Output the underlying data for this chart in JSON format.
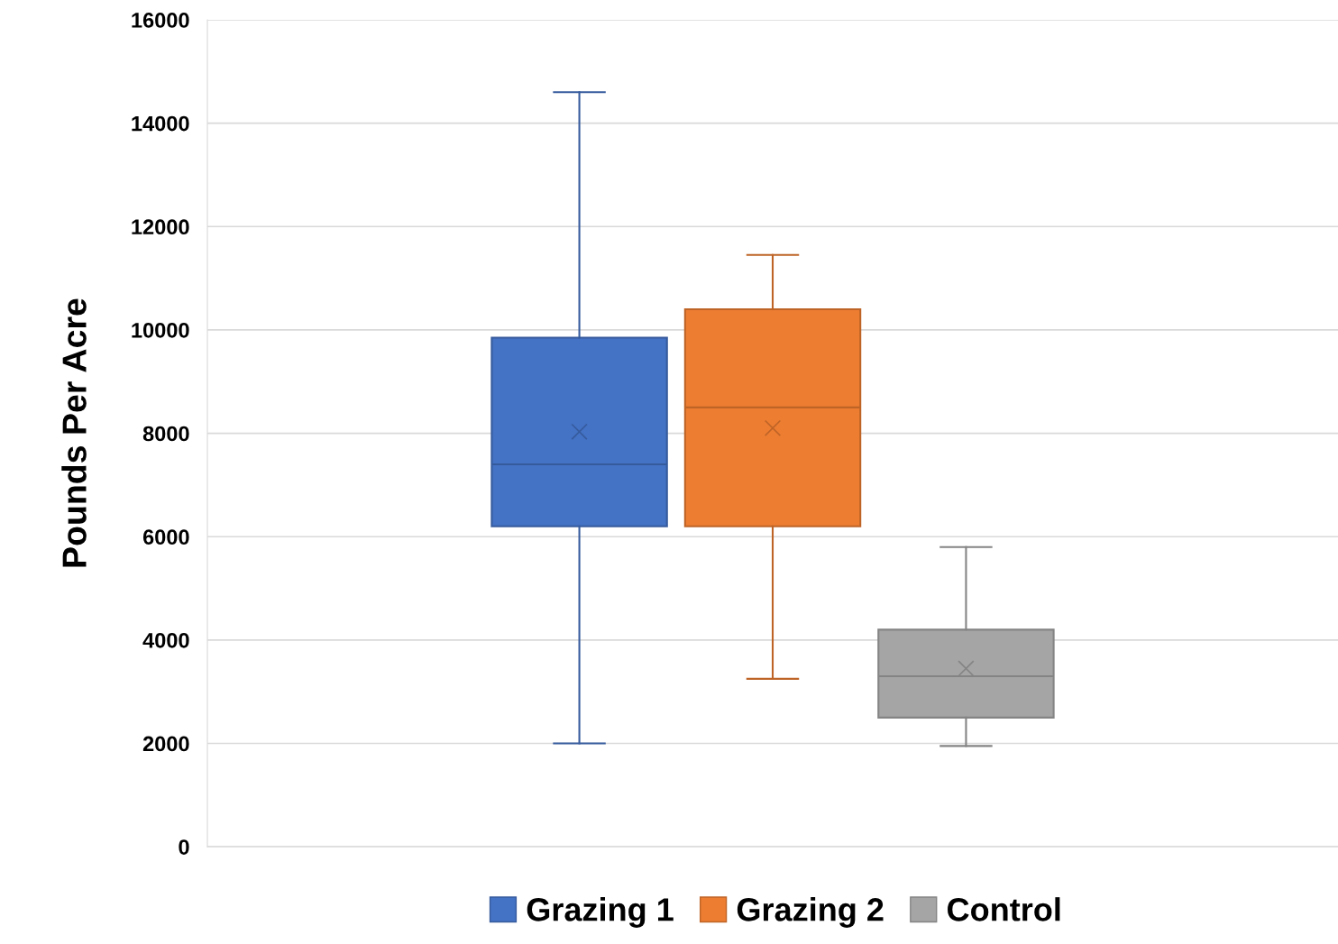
{
  "chart_data": {
    "type": "box",
    "ylabel": "Pounds Per Acre",
    "categories": [
      null
    ],
    "series": [
      {
        "name": "Grazing 1",
        "color": "#4472c4",
        "boxes": [
          {
            "low": 2000,
            "q1": 6200,
            "median": 7400,
            "q3": 9850,
            "high": 14600,
            "mean": 8030
          }
        ]
      },
      {
        "name": "Grazing 2",
        "color": "#ed7d31",
        "boxes": [
          {
            "low": 3250,
            "q1": 6200,
            "median": 8500,
            "q3": 10400,
            "high": 11450,
            "mean": 8100
          }
        ]
      },
      {
        "name": "Control",
        "color": "#a5a5a5",
        "boxes": [
          {
            "low": 1950,
            "q1": 2500,
            "median": 3300,
            "q3": 4200,
            "high": 5800,
            "mean": 3450
          }
        ]
      }
    ],
    "ylim": [
      0,
      16000
    ],
    "yticks": [
      0,
      2000,
      4000,
      6000,
      8000,
      10000,
      12000,
      14000,
      16000
    ],
    "grid": "y",
    "legend": "bottom",
    "marker": "cross"
  }
}
